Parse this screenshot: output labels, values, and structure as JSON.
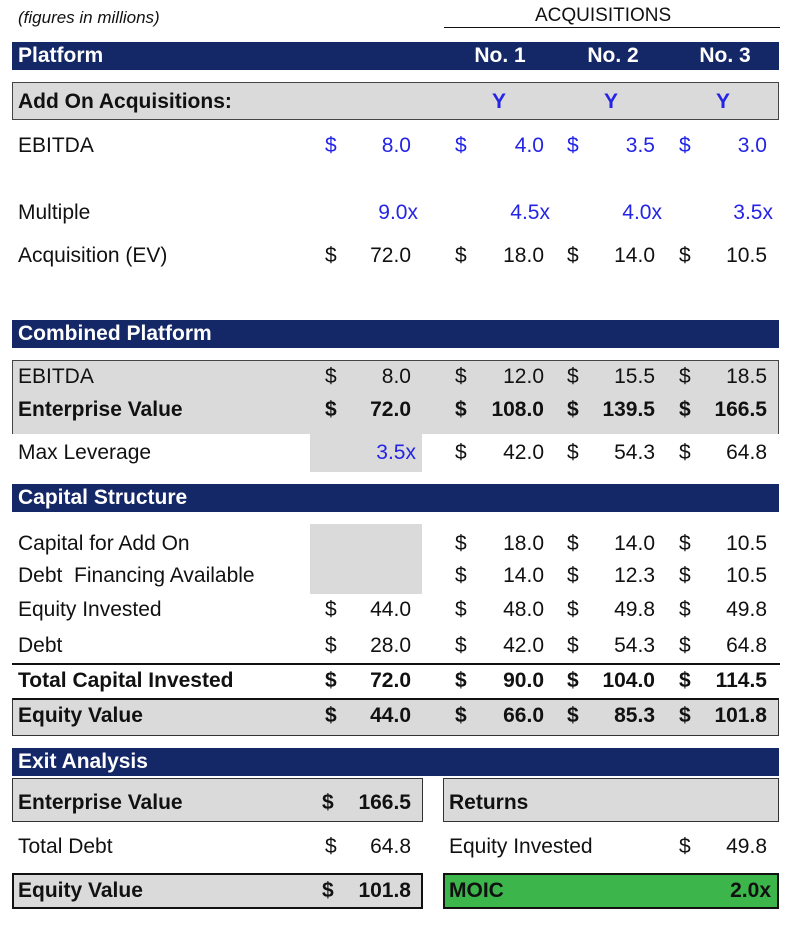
{
  "note": "(figures in millions)",
  "acquisitions_header": "ACQUISITIONS",
  "band_platform": {
    "title": "Platform",
    "cols": [
      "No. 1",
      "No. 2",
      "No. 3"
    ]
  },
  "addon": {
    "label": "Add On Acquisitions:",
    "flags": [
      "Y",
      "Y",
      "Y"
    ]
  },
  "top_rows": [
    {
      "label": "EBITDA",
      "cur": [
        "$",
        "$",
        "$",
        "$"
      ],
      "vals": [
        "8.0",
        "4.0",
        "3.5",
        "3.0"
      ],
      "blue": true,
      "bold": false
    },
    {
      "label": "Multiple",
      "cur": [
        "",
        "",
        "",
        ""
      ],
      "vals": [
        "9.0x",
        "4.5x",
        "4.0x",
        "3.5x"
      ],
      "blue": true,
      "bold": false
    },
    {
      "label": "Acquisition (EV)",
      "cur": [
        "$",
        "$",
        "$",
        "$"
      ],
      "vals": [
        "72.0",
        "18.0",
        "14.0",
        "10.5"
      ],
      "blue": false,
      "bold": false
    }
  ],
  "band_combined": {
    "title": "Combined Platform"
  },
  "combined_rows": [
    {
      "label": "EBITDA",
      "cur": [
        "$",
        "$",
        "$",
        "$"
      ],
      "vals": [
        "8.0",
        "12.0",
        "15.5",
        "18.5"
      ],
      "bold": false
    },
    {
      "label": "Enterprise Value",
      "cur": [
        "$",
        "$",
        "$",
        "$"
      ],
      "vals": [
        "72.0",
        "108.0",
        "139.5",
        "166.5"
      ],
      "bold": true
    },
    {
      "label": "Max Leverage",
      "cur": [
        "",
        "$",
        "$",
        "$"
      ],
      "vals": [
        "3.5x",
        "42.0",
        "54.3",
        "64.8"
      ],
      "bold": false
    }
  ],
  "band_capital": {
    "title": "Capital Structure"
  },
  "capital_rows": [
    {
      "label": "Capital for Add On",
      "cur": [
        "",
        "$",
        "$",
        "$"
      ],
      "vals": [
        "",
        "18.0",
        "14.0",
        "10.5"
      ],
      "bold": false
    },
    {
      "label": "Debt  Financing Available",
      "cur": [
        "",
        "$",
        "$",
        "$"
      ],
      "vals": [
        "",
        "14.0",
        "12.3",
        "10.5"
      ],
      "bold": false
    },
    {
      "label": "Equity Invested",
      "cur": [
        "$",
        "$",
        "$",
        "$"
      ],
      "vals": [
        "44.0",
        "48.0",
        "49.8",
        "49.8"
      ],
      "bold": false
    },
    {
      "label": "Debt",
      "cur": [
        "$",
        "$",
        "$",
        "$"
      ],
      "vals": [
        "28.0",
        "42.0",
        "54.3",
        "64.8"
      ],
      "bold": false
    },
    {
      "label": "Total Capital Invested",
      "cur": [
        "$",
        "$",
        "$",
        "$"
      ],
      "vals": [
        "72.0",
        "90.0",
        "104.0",
        "114.5"
      ],
      "bold": true
    },
    {
      "label": "Equity Value",
      "cur": [
        "$",
        "$",
        "$",
        "$"
      ],
      "vals": [
        "44.0",
        "66.0",
        "85.3",
        "101.8"
      ],
      "bold": true
    }
  ],
  "band_exit": {
    "title": "Exit Analysis"
  },
  "exit": {
    "ev_label": "Enterprise Value",
    "ev_cur": "$",
    "ev_val": "166.5",
    "debt_label": "Total Debt",
    "debt_cur": "$",
    "debt_val": "64.8",
    "eqv_label": "Equity Value",
    "eqv_cur": "$",
    "eqv_val": "101.8",
    "returns_label": "Returns",
    "eqi_label": "Equity Invested",
    "eqi_cur": "$",
    "eqi_val": "49.8",
    "moic_label": "MOIC",
    "moic_val": "2.0x"
  },
  "colors": {
    "navy": "#142766",
    "blue_input": "#2424e6",
    "gray": "#dadada",
    "green": "#3cb54a"
  }
}
